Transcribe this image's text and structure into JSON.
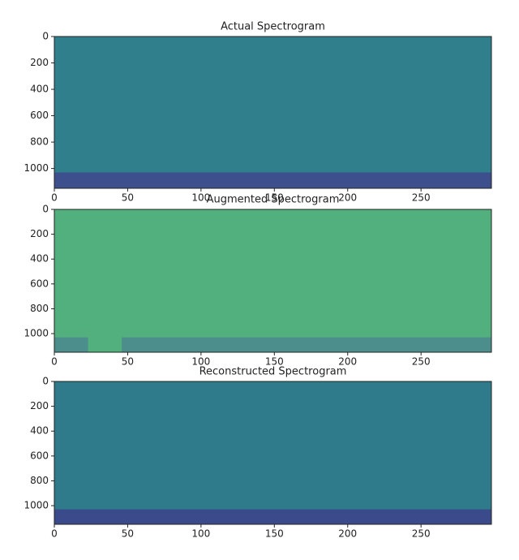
{
  "chart_data": [
    {
      "type": "image",
      "title": "Actual Spectrogram",
      "xlim": [
        0,
        298
      ],
      "ylim": [
        1150,
        0
      ],
      "xticks": [
        0,
        50,
        100,
        150,
        200,
        250
      ],
      "yticks": [
        0,
        200,
        400,
        600,
        800,
        1000
      ],
      "color": "#2f7f8c",
      "bands": [
        {
          "x": [
            0,
            298
          ],
          "y": [
            1030,
            1150
          ],
          "color": "#3d4f8d"
        }
      ]
    },
    {
      "type": "image",
      "title": "Augmented Spectrogram",
      "xlim": [
        0,
        298
      ],
      "ylim": [
        1150,
        0
      ],
      "xticks": [
        0,
        50,
        100,
        150,
        200,
        250
      ],
      "yticks": [
        0,
        200,
        400,
        600,
        800,
        1000
      ],
      "color": "#52b07e",
      "bands": [
        {
          "x": [
            0,
            23
          ],
          "y": [
            1030,
            1150
          ],
          "color": "#4b8e8c"
        },
        {
          "x": [
            46,
            298
          ],
          "y": [
            1030,
            1150
          ],
          "color": "#4b8e8c"
        }
      ]
    },
    {
      "type": "image",
      "title": "Reconstructed Spectrogram",
      "xlim": [
        0,
        298
      ],
      "ylim": [
        1150,
        0
      ],
      "xticks": [
        0,
        50,
        100,
        150,
        200,
        250
      ],
      "yticks": [
        0,
        200,
        400,
        600,
        800,
        1000
      ],
      "color": "#2f7a8b",
      "bands": [
        {
          "x": [
            0,
            298
          ],
          "y": [
            1030,
            1150
          ],
          "color": "#3b4a8b"
        }
      ]
    }
  ]
}
